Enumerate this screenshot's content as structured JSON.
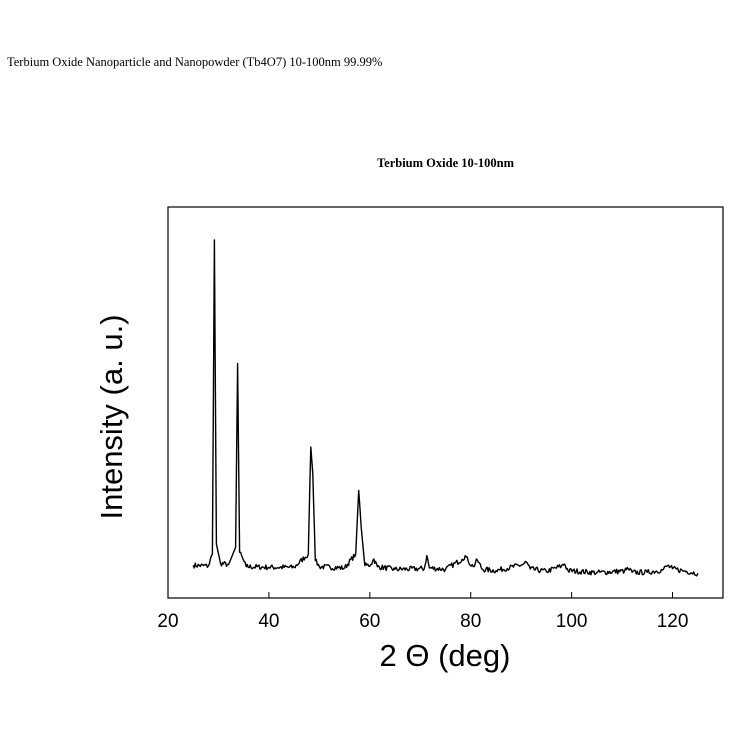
{
  "page": {
    "title": "Terbium Oxide Nanoparticle and Nanopowder (Tb4O7)  10-100nm  99.99%"
  },
  "chart_data": {
    "type": "line",
    "title": "Terbium Oxide 10-100nm",
    "xlabel": "2 Θ (deg)",
    "ylabel": "Intensity (a. u.)",
    "xlim": [
      20,
      130
    ],
    "ylim": [
      0,
      100
    ],
    "xticks": [
      20,
      40,
      60,
      80,
      100,
      120
    ],
    "xtick_labels": [
      "20",
      "40",
      "60",
      "80",
      "100",
      "120"
    ],
    "show_yticks": false,
    "grid": false,
    "line_color": "#000000",
    "series": [
      {
        "x": [
          25.0,
          28.0,
          28.8,
          29.2,
          29.6,
          30.4,
          32.0,
          33.4,
          33.8,
          34.2,
          35.5,
          40.0,
          45.0,
          47.8,
          48.3,
          48.7,
          49.2,
          50.0,
          55.0,
          57.2,
          57.8,
          58.3,
          59.0,
          60.2,
          60.8,
          61.5,
          65.0,
          70.8,
          71.3,
          71.8,
          75.0,
          78.3,
          78.9,
          79.5,
          80.5,
          81.3,
          82.3,
          85.0,
          90.3,
          91.0,
          91.8,
          95.0,
          98.0,
          98.6,
          99.3,
          105.0,
          110.5,
          111.2,
          112.0,
          115.0,
          118.0,
          119.0,
          120.0,
          122.0,
          125.0
        ],
        "values": [
          2.6,
          2.4,
          6.0,
          100.0,
          9.0,
          3.2,
          2.8,
          8.0,
          63.0,
          6.5,
          2.2,
          2.0,
          2.0,
          6.0,
          38.0,
          30.0,
          4.0,
          2.2,
          1.8,
          6.0,
          25.0,
          14.0,
          2.5,
          2.8,
          4.5,
          2.2,
          1.4,
          1.6,
          5.5,
          1.8,
          1.4,
          4.4,
          5.5,
          3.8,
          2.2,
          4.2,
          1.4,
          1.0,
          2.8,
          3.6,
          1.5,
          0.8,
          2.4,
          3.0,
          1.0,
          0.4,
          0.9,
          1.6,
          0.5,
          0.5,
          1.2,
          2.5,
          1.6,
          1.0,
          0.2
        ]
      }
    ]
  }
}
